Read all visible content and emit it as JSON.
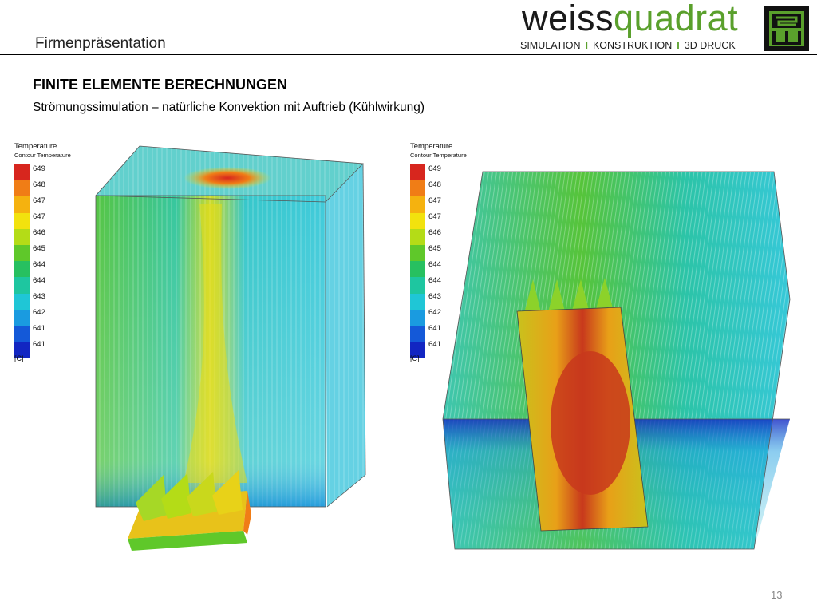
{
  "header": {
    "title": "Firmenpräsentation",
    "brand_part1": "weiss",
    "brand_part2": "quadrat",
    "tagline": [
      "SIMULATION",
      "KONSTRUKTION",
      "3D DRUCK"
    ],
    "tagline_separator": "I",
    "logo_icon": "weissquadrat-logo-icon"
  },
  "section": {
    "title": "FINITE ELEMENTE BERECHNUNGEN",
    "subtitle": "Strömungssimulation – natürliche Konvektion mit Auftrieb (Kühlwirkung)"
  },
  "legend": {
    "title": "Temperature",
    "subtitle": "Contour Temperature",
    "ticks": [
      "649",
      "648",
      "647",
      "647",
      "646",
      "645",
      "644",
      "644",
      "643",
      "642",
      "641",
      "641"
    ],
    "unit": "[C]",
    "colors": [
      "#d7261e",
      "#f07d16",
      "#f5b20f",
      "#f2e20e",
      "#b4dc17",
      "#5fc82a",
      "#27c060",
      "#1ec6a0",
      "#1fc6d6",
      "#1a9be0",
      "#1459d8",
      "#1226c2"
    ]
  },
  "figures": {
    "left": "cfd-heatsink-streamlines-image",
    "right": "cfd-heatsink-section-image"
  },
  "colors": {
    "brand_green": "#5aa02c",
    "hot": "#d7261e",
    "cold": "#1226c2"
  },
  "footer": {
    "page_number": "13"
  }
}
